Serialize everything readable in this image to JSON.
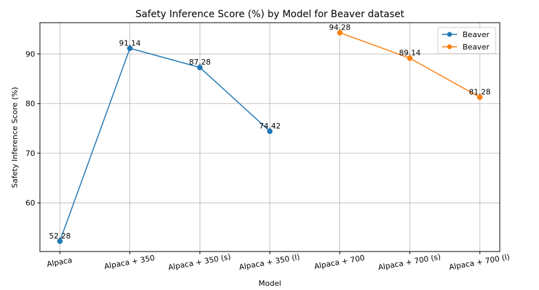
{
  "chart_data": {
    "type": "line",
    "title": "Safety Inference Score (%) by Model for Beaver dataset",
    "xlabel": "Model",
    "ylabel": "Safety Inference Score (%)",
    "categories": [
      "Alpaca",
      "Alpaca + 350",
      "Alpaca + 350 (s)",
      "Alpaca + 350 (l)",
      "Alpaca + 700",
      "Alpaca + 700 (s)",
      "Alpaca + 700 (l)"
    ],
    "ylim": [
      50.2,
      96.3
    ],
    "yticks": [
      60,
      70,
      80,
      90
    ],
    "grid": true,
    "legend_position": "top-right",
    "series": [
      {
        "name": "Beaver",
        "color": "#1f77b4",
        "x": [
          "Alpaca",
          "Alpaca + 350",
          "Alpaca + 350 (s)",
          "Alpaca + 350 (l)"
        ],
        "values": [
          52.28,
          91.14,
          87.28,
          74.42
        ],
        "labels": [
          "52.28",
          "91.14",
          "87.28",
          "74.42"
        ]
      },
      {
        "name": "Beaver",
        "color": "#ff7f0e",
        "x": [
          "Alpaca + 700",
          "Alpaca + 700 (s)",
          "Alpaca + 700 (l)"
        ],
        "values": [
          94.28,
          89.14,
          81.28
        ],
        "labels": [
          "94.28",
          "89.14",
          "81.28"
        ]
      }
    ]
  }
}
